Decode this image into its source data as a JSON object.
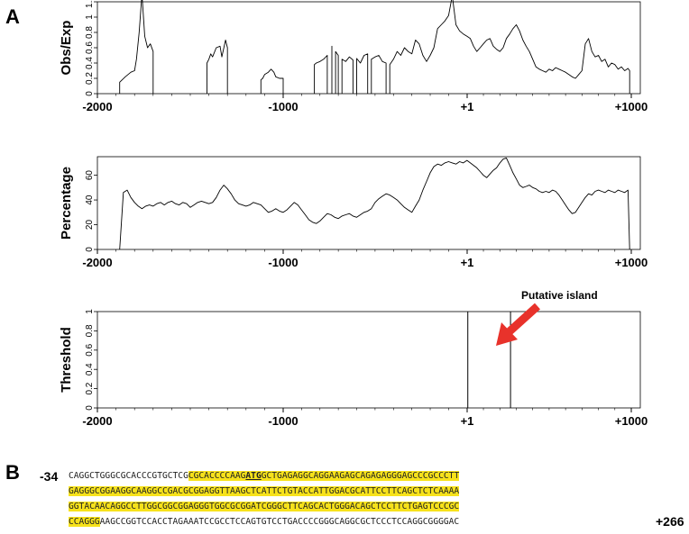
{
  "figure": {
    "panel_a_label": "A",
    "panel_b_label": "B"
  },
  "chart_data": [
    {
      "type": "line",
      "ylabel": "Obs/Exp",
      "xlim": [
        -2000,
        1000
      ],
      "ylim": [
        0,
        1.2
      ],
      "xticks": [
        "-2000",
        "-1000",
        "+1",
        "+1000"
      ],
      "yticks": [
        "0",
        "0.2",
        "0.4",
        "0.6",
        "0.8",
        "1",
        "1.2"
      ],
      "x": [
        -1880,
        -1850,
        -1820,
        -1800,
        -1790,
        -1775,
        -1760,
        -1745,
        -1730,
        -1715,
        -1700,
        -1410,
        -1400,
        -1390,
        -1380,
        -1360,
        -1340,
        -1330,
        -1310,
        -1300,
        -1120,
        -1110,
        -1100,
        -1080,
        -1065,
        -1050,
        -1040,
        -1020,
        -1000,
        -830,
        -820,
        -800,
        -780,
        -760,
        -735,
        -715,
        -700,
        -680,
        -660,
        -640,
        -620,
        -600,
        -580,
        -560,
        -540,
        -520,
        -500,
        -480,
        -460,
        -440,
        -420,
        -400,
        -380,
        -360,
        -340,
        -320,
        -300,
        -280,
        -260,
        -240,
        -220,
        -200,
        -180,
        -160,
        -140,
        -120,
        -100,
        -80,
        -60,
        -40,
        -20,
        0,
        20,
        40,
        60,
        80,
        100,
        120,
        140,
        160,
        180,
        200,
        220,
        240,
        260,
        280,
        300,
        320,
        340,
        360,
        380,
        400,
        420,
        440,
        460,
        480,
        500,
        520,
        540,
        560,
        580,
        600,
        620,
        640,
        660,
        680,
        700,
        720,
        740,
        760,
        780,
        800,
        820,
        840,
        860,
        880,
        900,
        920,
        940,
        960,
        980,
        990
      ],
      "y": [
        0.15,
        0.22,
        0.28,
        0.3,
        0.45,
        0.8,
        1.3,
        0.75,
        0.6,
        0.65,
        0.55,
        0.4,
        0.45,
        0.52,
        0.48,
        0.6,
        0.62,
        0.48,
        0.7,
        0.6,
        0.18,
        0.2,
        0.25,
        0.28,
        0.32,
        0.28,
        0.22,
        0.2,
        0.2,
        0.38,
        0.4,
        0.42,
        0.45,
        0.5,
        0.62,
        0.55,
        0.5,
        0.45,
        0.42,
        0.48,
        0.44,
        0.46,
        0.4,
        0.5,
        0.52,
        0.45,
        0.48,
        0.5,
        0.42,
        0.4,
        0.38,
        0.45,
        0.55,
        0.5,
        0.6,
        0.55,
        0.52,
        0.7,
        0.65,
        0.5,
        0.42,
        0.5,
        0.6,
        0.85,
        0.9,
        0.95,
        1.02,
        1.28,
        0.9,
        0.82,
        0.78,
        0.75,
        0.72,
        0.62,
        0.55,
        0.6,
        0.65,
        0.7,
        0.72,
        0.62,
        0.58,
        0.55,
        0.6,
        0.72,
        0.78,
        0.85,
        0.9,
        0.82,
        0.7,
        0.62,
        0.55,
        0.45,
        0.35,
        0.32,
        0.3,
        0.28,
        0.32,
        0.3,
        0.34,
        0.32,
        0.3,
        0.28,
        0.25,
        0.22,
        0.2,
        0.25,
        0.3,
        0.65,
        0.72,
        0.55,
        0.48,
        0.5,
        0.42,
        0.45,
        0.35,
        0.4,
        0.38,
        0.32,
        0.35,
        0.3,
        0.33,
        0.3
      ],
      "breaks_before": [
        -1410,
        -1120,
        -830,
        -735,
        -715,
        -680,
        -600,
        -520,
        -420
      ]
    },
    {
      "type": "line",
      "ylabel": "Percentage",
      "xlim": [
        -2000,
        1000
      ],
      "ylim": [
        0,
        75
      ],
      "xticks": [
        "-2000",
        "-1000",
        "+1",
        "+1000"
      ],
      "yticks": [
        "0",
        "20",
        "40",
        "60"
      ],
      "x": [
        -1880,
        -1860,
        -1840,
        -1820,
        -1800,
        -1780,
        -1760,
        -1740,
        -1720,
        -1700,
        -1680,
        -1660,
        -1640,
        -1620,
        -1600,
        -1580,
        -1560,
        -1540,
        -1520,
        -1500,
        -1480,
        -1460,
        -1440,
        -1420,
        -1400,
        -1380,
        -1360,
        -1340,
        -1320,
        -1300,
        -1280,
        -1260,
        -1240,
        -1220,
        -1200,
        -1180,
        -1160,
        -1140,
        -1120,
        -1100,
        -1080,
        -1060,
        -1040,
        -1020,
        -1000,
        -980,
        -960,
        -940,
        -920,
        -900,
        -880,
        -860,
        -840,
        -820,
        -800,
        -780,
        -760,
        -740,
        -720,
        -700,
        -680,
        -660,
        -640,
        -620,
        -600,
        -580,
        -560,
        -540,
        -520,
        -500,
        -480,
        -460,
        -440,
        -420,
        -400,
        -380,
        -360,
        -340,
        -320,
        -300,
        -280,
        -260,
        -240,
        -220,
        -200,
        -180,
        -160,
        -140,
        -120,
        -100,
        -80,
        -60,
        -40,
        -20,
        0,
        20,
        40,
        60,
        80,
        100,
        120,
        140,
        160,
        180,
        200,
        220,
        240,
        260,
        280,
        300,
        320,
        340,
        360,
        380,
        400,
        420,
        440,
        460,
        480,
        500,
        520,
        540,
        560,
        580,
        600,
        620,
        640,
        660,
        680,
        700,
        720,
        740,
        760,
        780,
        800,
        820,
        840,
        860,
        880,
        900,
        920,
        940,
        960,
        980,
        990
      ],
      "y": [
        0,
        46,
        48,
        42,
        38,
        35,
        33,
        35,
        36,
        35,
        37,
        38,
        36,
        38,
        39,
        37,
        36,
        38,
        37,
        34,
        36,
        38,
        39,
        38,
        37,
        38,
        42,
        48,
        52,
        49,
        45,
        40,
        37,
        36,
        35,
        36,
        38,
        37,
        36,
        33,
        30,
        31,
        33,
        31,
        30,
        32,
        35,
        38,
        36,
        32,
        28,
        24,
        22,
        21,
        23,
        26,
        29,
        28,
        26,
        25,
        27,
        28,
        29,
        27,
        26,
        28,
        30,
        31,
        33,
        38,
        41,
        43,
        45,
        44,
        42,
        40,
        37,
        34,
        32,
        30,
        35,
        40,
        48,
        55,
        62,
        67,
        69,
        68,
        70,
        71,
        70,
        69,
        71,
        70,
        72,
        70,
        68,
        66,
        63,
        60,
        58,
        61,
        64,
        66,
        70,
        73,
        74,
        68,
        62,
        57,
        52,
        50,
        51,
        52,
        50,
        49,
        47,
        46,
        47,
        46,
        48,
        47,
        44,
        40,
        36,
        32,
        29,
        30,
        34,
        38,
        42,
        45,
        44,
        47,
        48,
        47,
        46,
        48,
        47,
        46,
        48,
        47,
        46,
        48,
        0
      ]
    },
    {
      "type": "line",
      "ylabel": "Threshold",
      "xlim": [
        -2000,
        1000
      ],
      "ylim": [
        0,
        1
      ],
      "xticks": [
        "-2000",
        "-1000",
        "+1",
        "+1000"
      ],
      "yticks": [
        "0",
        "0.2",
        "0.4",
        "0.6",
        "0.8",
        "1"
      ],
      "island_start": 5,
      "island_end": 265,
      "annotation": "Putative island"
    }
  ],
  "sequence": {
    "start_label": "-34",
    "end_label": "+266",
    "lines": [
      {
        "pre": "CAGGCTGGGCGCACCCGTGCTCG",
        "hl_a": "CGCACCCCAAG",
        "atg": "ATG",
        "hl_b": "GCTGAGAGGCAGGAAGAGCAGAGAGGGAGCCCGCCCTT",
        "post": ""
      },
      {
        "pre": "",
        "hl_a": "GAGGGCGGAAGGCAAGGCCGACGCGGAGGTTAAGCTCATTCTGTACCATTGGACGCATTCCTTCAGCTCTCAAAA",
        "atg": "",
        "hl_b": "",
        "post": ""
      },
      {
        "pre": "",
        "hl_a": "GGTACAACAGGCCTTGGCGGCGGAGGGTGGCGCGGATCGGGCTTCAGCACTGGGACAGCTCCTTCTGAGTCCCGC",
        "atg": "",
        "hl_b": "",
        "post": ""
      },
      {
        "pre": "",
        "hl_a": "CCAGGG",
        "atg": "",
        "hl_b": "",
        "post": "AAGCCGGTCCACCTAGAAATCCGCCTCCAGTGTCCTGACCCCGGGCAGGCGCTCCCTCCAGGCGGGGAC"
      }
    ]
  }
}
